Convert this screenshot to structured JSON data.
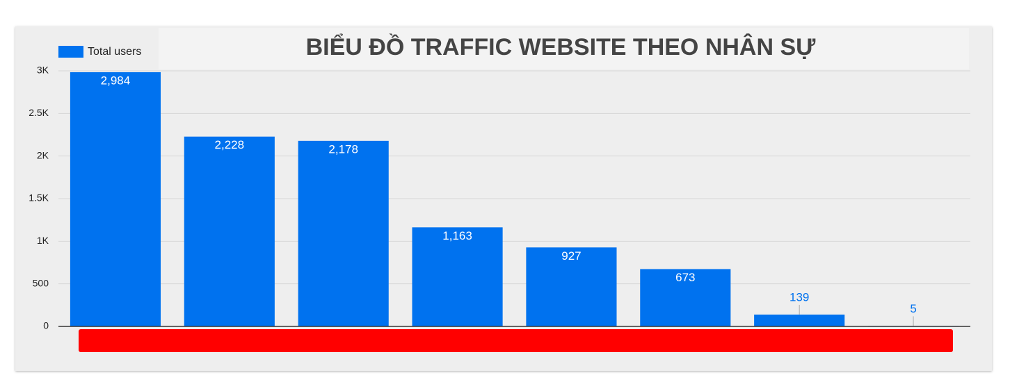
{
  "chart_data": {
    "type": "bar",
    "title": "BIỂU ĐỒ TRAFFIC WEBSITE THEO NHÂN SỰ",
    "categories": [
      null,
      null,
      null,
      null,
      null,
      null,
      null,
      null
    ],
    "series": [
      {
        "name": "Total users",
        "color": "#0072ef",
        "values": [
          2984,
          2228,
          2178,
          1163,
          927,
          673,
          139,
          5
        ],
        "value_labels": [
          "2,984",
          "2,228",
          "2,178",
          "1,163",
          "927",
          "673",
          "139",
          "5"
        ]
      }
    ],
    "ylim": [
      0,
      3000
    ],
    "yticks": [
      0,
      500,
      {
        "value": 1000,
        "label": "1K"
      },
      {
        "value": 1500,
        "label": "1.5K"
      },
      {
        "value": 2000,
        "label": "2K"
      },
      {
        "value": 2500,
        "label": "2.5K"
      },
      {
        "value": 3000,
        "label": "3K"
      }
    ],
    "grid": true,
    "legend": "top-left"
  }
}
